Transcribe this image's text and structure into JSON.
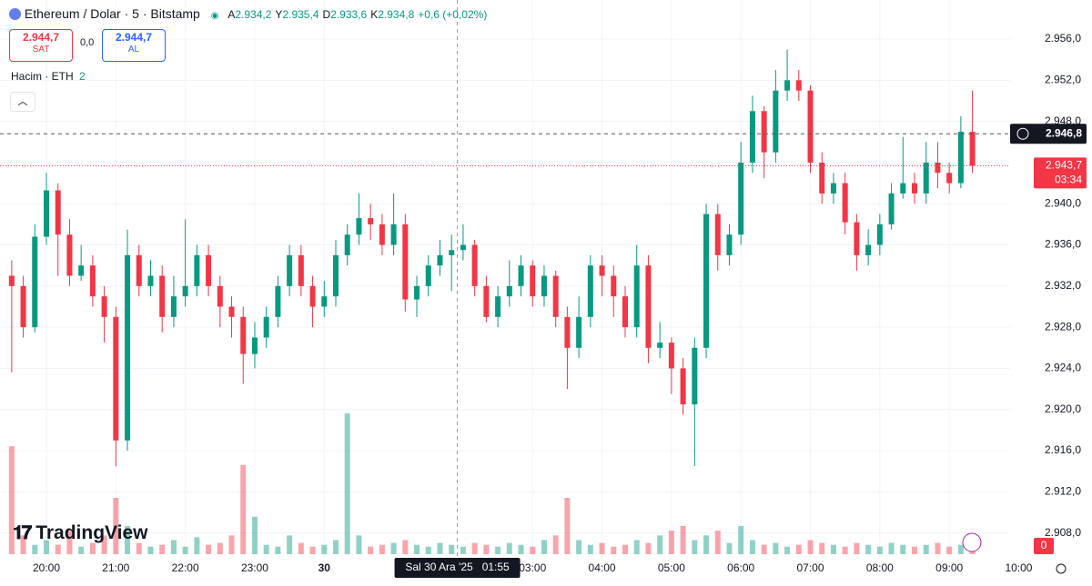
{
  "chart_data": {
    "type": "candlestick",
    "title": "Ethereum / Dolar · 5 · Bitstamp",
    "ohlc_header": [
      {
        "key": "A",
        "value": "2.934,2"
      },
      {
        "key": "Y",
        "value": "2.935,4"
      },
      {
        "key": "D",
        "value": "2.933,6"
      },
      {
        "key": "K",
        "value": "2.934,8"
      }
    ],
    "change": "+0,6 (+0,02%)",
    "sell": {
      "price": "2.944,7",
      "label": "SAT"
    },
    "spread": "0,0",
    "buy": {
      "price": "2.944,7",
      "label": "AL"
    },
    "volume_legend": {
      "name": "Hacim · ETH",
      "value": "2"
    },
    "brand": "TradingView",
    "up_color": "#089981",
    "down_color": "#f23645",
    "categories": [
      null,
      null,
      null,
      "20:00",
      null,
      null,
      null,
      null,
      null,
      "21:00",
      null,
      null,
      null,
      null,
      null,
      "22:00",
      null,
      null,
      null,
      null,
      null,
      "23:00",
      null,
      null,
      null,
      null,
      null,
      "30",
      null,
      null,
      null,
      null,
      null,
      null,
      null,
      null,
      null,
      null,
      null,
      null,
      null,
      null,
      null,
      null,
      null,
      "03:00",
      null,
      null,
      null,
      null,
      null,
      "04:00",
      null,
      null,
      null,
      null,
      null,
      "05:00",
      null,
      null,
      null,
      null,
      null,
      "06:00",
      null,
      null,
      null,
      null,
      null,
      "07:00",
      null,
      null,
      null,
      null,
      null,
      "08:00",
      null,
      null,
      null,
      null,
      null,
      "09:00",
      null,
      null
    ],
    "axis_end_label": "10:00",
    "open": [
      2933,
      2932,
      2928,
      2936.8,
      2941.3,
      2937,
      2933,
      2934,
      2931,
      2929,
      2917,
      2935,
      2932,
      2933,
      2929,
      2931,
      2932,
      2935,
      2932,
      2930,
      2929,
      2925.4,
      2927,
      2929,
      2932,
      2935,
      2932,
      2930,
      2931,
      2935,
      2937,
      2938.6,
      2938,
      2936,
      2938,
      2930.7,
      2932,
      2934,
      2935,
      2935.5,
      2936,
      2932,
      2929,
      2931,
      2932,
      2934,
      2931,
      2933,
      2929,
      2926,
      2929,
      2934,
      2933,
      2931,
      2928,
      2934,
      2926,
      2926.5,
      2924,
      2920.5,
      2926,
      2939,
      2935,
      2937,
      2944,
      2949,
      2945,
      2951,
      2952,
      2951,
      2944,
      2941,
      2942,
      2938.2,
      2935,
      2936,
      2938,
      2941,
      2942,
      2941,
      2944,
      2943,
      2942,
      2947
    ],
    "high": [
      2934.5,
      2933,
      2938,
      2943,
      2942,
      2938.5,
      2936,
      2935,
      2932,
      2930,
      2937.5,
      2936,
      2934.5,
      2934,
      2933,
      2938.5,
      2936,
      2936,
      2933,
      2931,
      2930,
      2928.5,
      2930,
      2933,
      2936,
      2936,
      2933,
      2932.5,
      2936.5,
      2938,
      2941,
      2940,
      2939,
      2941,
      2939,
      2933,
      2935,
      2936.5,
      2937,
      2938,
      2936.5,
      2933,
      2932,
      2934.5,
      2935,
      2934.5,
      2934,
      2933.5,
      2930,
      2931,
      2935,
      2935,
      2934,
      2932,
      2936,
      2935,
      2928.5,
      2927,
      2925,
      2927,
      2940,
      2940,
      2938,
      2946,
      2950.5,
      2949.5,
      2953,
      2955,
      2953,
      2951.5,
      2945,
      2943,
      2943,
      2939,
      2937.5,
      2939,
      2942,
      2946.5,
      2943,
      2946,
      2946,
      2944,
      2948.5,
      2951
    ],
    "low": [
      2923.6,
      2927,
      2927.5,
      2936,
      2933,
      2932,
      2932.5,
      2930,
      2926.5,
      2914.5,
      2916,
      2931,
      2931,
      2927.5,
      2928,
      2930,
      2931,
      2931,
      2928,
      2927,
      2922.5,
      2924,
      2926,
      2928,
      2931,
      2931,
      2928,
      2929,
      2930,
      2934,
      2936,
      2936.5,
      2935,
      2935,
      2929.5,
      2929,
      2931,
      2933,
      2931.5,
      2934.5,
      2931,
      2928.5,
      2928,
      2930,
      2931,
      2930,
      2930,
      2928,
      2922,
      2925,
      2928,
      2931,
      2929,
      2927,
      2927,
      2924.5,
      2925,
      2921.5,
      2919.5,
      2914.5,
      2925,
      2933.5,
      2934,
      2936,
      2943,
      2942.5,
      2944,
      2950,
      2950,
      2943,
      2940,
      2940,
      2937,
      2933.5,
      2934,
      2935,
      2937.5,
      2940.5,
      2940,
      2940,
      2941.5,
      2941,
      2941.5,
      2943
    ],
    "close": [
      2932,
      2928,
      2936.8,
      2941.3,
      2937,
      2933,
      2934,
      2931,
      2929,
      2917,
      2935,
      2932,
      2933,
      2929,
      2931,
      2932,
      2935,
      2932,
      2930,
      2929,
      2925.4,
      2927,
      2929,
      2932,
      2935,
      2932,
      2930,
      2931,
      2935,
      2937,
      2938.6,
      2938,
      2936,
      2938,
      2930.7,
      2932,
      2934,
      2935,
      2935.5,
      2936,
      2932,
      2929,
      2931,
      2932,
      2934,
      2931,
      2933,
      2929,
      2926,
      2929,
      2934,
      2933,
      2931,
      2928,
      2934,
      2926,
      2926.5,
      2924,
      2920.5,
      2926,
      2939,
      2935,
      2937,
      2944,
      2949,
      2945,
      2951,
      2952,
      2951,
      2944,
      2941,
      2942,
      2938.2,
      2935,
      2936,
      2938,
      2941,
      2942,
      2941,
      2944,
      2943,
      2942,
      2947,
      2943.7
    ],
    "volume": [
      115,
      20,
      10,
      15,
      10,
      25,
      8,
      12,
      20,
      60,
      30,
      12,
      8,
      10,
      15,
      8,
      18,
      10,
      12,
      20,
      95,
      40,
      10,
      8,
      20,
      12,
      8,
      10,
      15,
      150,
      20,
      8,
      10,
      12,
      15,
      10,
      8,
      12,
      10,
      8,
      12,
      10,
      8,
      12,
      10,
      8,
      15,
      20,
      60,
      15,
      10,
      12,
      8,
      10,
      15,
      12,
      20,
      25,
      30,
      15,
      20,
      25,
      12,
      30,
      15,
      10,
      12,
      8,
      10,
      15,
      12,
      10,
      8,
      12,
      10,
      8,
      12,
      10,
      8,
      10,
      12,
      8,
      10,
      12
    ],
    "ylim": [
      2905.5,
      2959.8
    ],
    "yticks": [
      {
        "value": 2908,
        "label": "2.908,0"
      },
      {
        "value": 2912,
        "label": "2.912,0"
      },
      {
        "value": 2916,
        "label": "2.916,0"
      },
      {
        "value": 2920,
        "label": "2.920,0"
      },
      {
        "value": 2924,
        "label": "2.924,0"
      },
      {
        "value": 2928,
        "label": "2.928,0"
      },
      {
        "value": 2932,
        "label": "2.932,0"
      },
      {
        "value": 2936,
        "label": "2.936,0"
      },
      {
        "value": 2940,
        "label": "2.940,0"
      },
      {
        "value": 2944,
        "label": "2.944,0"
      },
      {
        "value": 2948,
        "label": "2.948,0"
      },
      {
        "value": 2952,
        "label": "2.952,0"
      },
      {
        "value": 2956,
        "label": "2.956,0"
      }
    ],
    "grid": true,
    "crosshair_price": {
      "value": 2946.8,
      "label": "2.946,8"
    },
    "crosshair_time": "Sal 30 Ara '25   01:55",
    "last_price": {
      "value": 2943.7,
      "label": "2.943,7"
    },
    "countdown": "03:34",
    "volume_tag": "0"
  }
}
